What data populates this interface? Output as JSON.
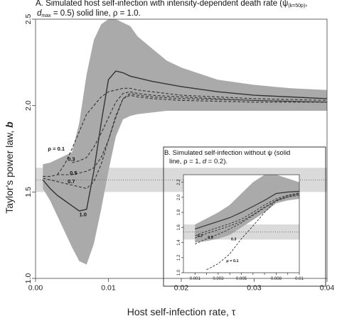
{
  "colors": {
    "band": "#aaaaaa",
    "ref_band": "#dadada",
    "line": "#333333",
    "axis": "#444444"
  },
  "chart_data": [
    {
      "type": "line",
      "title_parts": {
        "panel": "A.",
        "t1": "Simulated host self-infection with intensity-dependent death rate (",
        "psi": "ψ",
        "psi_sub": "(k=50p)",
        "t2": ",",
        "dmax": "d",
        "dmax_sub": "max",
        "t3": "= 0.5) solid line, ρ = 1.0."
      },
      "xlabel": "Host self-infection rate, τ",
      "ylabel_parts": {
        "text": "Taylor's power law, ",
        "var": "b"
      },
      "xlim": [
        0,
        0.04
      ],
      "ylim": [
        1.0,
        2.5
      ],
      "xticks": [
        0.0,
        0.01,
        0.02,
        0.03,
        0.04
      ],
      "xtick_labels": [
        "0.00",
        "0.01",
        "0.02",
        "0.03",
        "0.04"
      ],
      "yticks": [
        1.0,
        1.5,
        2.0,
        2.5
      ],
      "ytick_labels": [
        "1.0",
        "1.5",
        "2.0",
        "2.5"
      ],
      "reference_band": {
        "lower": 1.5,
        "upper": 1.64,
        "line": 1.57
      },
      "band": {
        "x": [
          0.001,
          0.002,
          0.003,
          0.004,
          0.005,
          0.006,
          0.007,
          0.008,
          0.009,
          0.01,
          0.011,
          0.012,
          0.013,
          0.014,
          0.016,
          0.018,
          0.02,
          0.025,
          0.03,
          0.035,
          0.04
        ],
        "upper": [
          1.66,
          1.67,
          1.69,
          1.71,
          1.73,
          1.9,
          2.18,
          2.38,
          2.47,
          2.5,
          2.5,
          2.48,
          2.46,
          2.4,
          2.33,
          2.26,
          2.22,
          2.15,
          2.12,
          2.1,
          2.09
        ],
        "lower": [
          1.52,
          1.45,
          1.36,
          1.27,
          1.18,
          1.1,
          1.08,
          1.2,
          1.4,
          1.62,
          1.82,
          1.92,
          1.94,
          1.95,
          1.96,
          1.97,
          1.97,
          1.97,
          1.97,
          1.97,
          1.97
        ]
      },
      "series": [
        {
          "label": "1.0",
          "style": "solid",
          "x": [
            0.001,
            0.002,
            0.003,
            0.004,
            0.005,
            0.006,
            0.007,
            0.008,
            0.009,
            0.01,
            0.011,
            0.012,
            0.013,
            0.014,
            0.016,
            0.02,
            0.025,
            0.03,
            0.035,
            0.04
          ],
          "y": [
            1.57,
            1.52,
            1.48,
            1.45,
            1.42,
            1.39,
            1.4,
            1.62,
            1.9,
            2.15,
            2.2,
            2.19,
            2.17,
            2.16,
            2.14,
            2.11,
            2.08,
            2.06,
            2.05,
            2.04
          ]
        },
        {
          "label": "ρ = 0.1",
          "style": "dashed",
          "x": [
            0.003,
            0.004,
            0.005,
            0.006,
            0.007,
            0.008,
            0.009,
            0.01,
            0.011,
            0.012,
            0.013,
            0.014,
            0.016,
            0.02,
            0.03,
            0.04
          ],
          "y": [
            1.6,
            1.66,
            1.75,
            1.85,
            1.95,
            2.0,
            2.05,
            2.08,
            2.09,
            2.1,
            2.1,
            2.09,
            2.08,
            2.06,
            2.04,
            2.03
          ]
        },
        {
          "label": "0.3",
          "style": "dashed",
          "x": [
            0.005,
            0.006,
            0.007,
            0.008,
            0.009,
            0.01,
            0.011,
            0.012,
            0.013,
            0.014,
            0.016,
            0.02,
            0.03,
            0.04
          ],
          "y": [
            1.67,
            1.68,
            1.7,
            1.76,
            1.84,
            1.93,
            2.02,
            2.07,
            2.08,
            2.07,
            2.06,
            2.05,
            2.03,
            2.02
          ]
        },
        {
          "label": "0.5",
          "style": "dashed",
          "x": [
            0.001,
            0.002,
            0.003,
            0.004,
            0.005,
            0.006,
            0.007,
            0.008,
            0.009,
            0.01,
            0.011,
            0.012,
            0.013,
            0.014,
            0.016,
            0.02,
            0.03,
            0.04
          ],
          "y": [
            1.59,
            1.59,
            1.6,
            1.6,
            1.6,
            1.61,
            1.62,
            1.64,
            1.7,
            1.8,
            1.93,
            2.04,
            2.07,
            2.06,
            2.05,
            2.04,
            2.03,
            2.02
          ]
        },
        {
          "label": "0.7",
          "style": "dashed",
          "x": [
            0.001,
            0.002,
            0.003,
            0.004,
            0.005,
            0.006,
            0.007,
            0.008,
            0.009,
            0.01,
            0.011,
            0.012,
            0.013,
            0.014,
            0.016,
            0.02,
            0.03,
            0.04
          ],
          "y": [
            1.58,
            1.57,
            1.56,
            1.55,
            1.54,
            1.53,
            1.52,
            1.56,
            1.66,
            1.8,
            1.94,
            2.04,
            2.06,
            2.05,
            2.04,
            2.03,
            2.02,
            2.02
          ]
        }
      ],
      "labels": [
        {
          "text": "ρ = 0.1",
          "x": 0.0017,
          "y": 1.74
        },
        {
          "text": "0.3",
          "x": 0.0044,
          "y": 1.68
        },
        {
          "text": "0.5",
          "x": 0.0047,
          "y": 1.6
        },
        {
          "text": "0.7",
          "x": 0.0044,
          "y": 1.55
        },
        {
          "text": "1.0",
          "x": 0.006,
          "y": 1.36
        }
      ]
    },
    {
      "type": "line",
      "title_parts": {
        "panel": "B.",
        "t1": "Simulated self-infection without ψ (solid",
        "t2a": "line, ρ = 1, ",
        "d": "d",
        "t2b": " = 0.2)."
      },
      "xlim": [
        0,
        0.01
      ],
      "ylim": [
        1.0,
        2.3
      ],
      "xticks": [
        0.001,
        0.002,
        0.003,
        0.004,
        0.005,
        0.006,
        0.007,
        0.008,
        0.009,
        0.01
      ],
      "xtick_labels": [
        "0.001",
        "",
        "0.003",
        "",
        "0.005",
        "",
        "",
        "0.008",
        "",
        "0.01"
      ],
      "yticks": [
        1.0,
        1.2,
        1.4,
        1.6,
        1.8,
        2.0,
        2.2
      ],
      "ytick_labels": [
        "1.0",
        "1.2",
        "1.4",
        "1.6",
        "1.8",
        "2.0",
        "2.2"
      ],
      "reference_band": {
        "lower": 1.44,
        "upper": 1.64,
        "line": 1.54
      },
      "band": {
        "x": [
          0.001,
          0.002,
          0.003,
          0.004,
          0.005,
          0.006,
          0.007,
          0.008,
          0.009,
          0.01
        ],
        "upper": [
          1.64,
          1.72,
          1.8,
          1.9,
          2.05,
          2.2,
          2.3,
          2.3,
          2.25,
          2.2
        ],
        "lower": [
          1.4,
          1.42,
          1.45,
          1.5,
          1.6,
          1.7,
          1.8,
          1.92,
          1.96,
          1.98
        ]
      },
      "series": [
        {
          "label": "1.0",
          "style": "solid",
          "x": [
            0.001,
            0.002,
            0.003,
            0.004,
            0.005,
            0.006,
            0.007,
            0.008,
            0.009,
            0.01
          ],
          "y": [
            1.58,
            1.63,
            1.68,
            1.73,
            1.8,
            1.88,
            1.96,
            2.05,
            2.07,
            2.08
          ]
        },
        {
          "label": "ρ = 0.1",
          "style": "dashed",
          "x": [
            0.002,
            0.003,
            0.004,
            0.005,
            0.006,
            0.007,
            0.008,
            0.009,
            0.01
          ],
          "y": [
            1.04,
            1.12,
            1.25,
            1.45,
            1.62,
            1.8,
            1.96,
            2.02,
            2.05
          ]
        },
        {
          "label": "0.3",
          "style": "dashed",
          "x": [
            0.001,
            0.002,
            0.003,
            0.004,
            0.005,
            0.006,
            0.007,
            0.008,
            0.009,
            0.01
          ],
          "y": [
            1.38,
            1.45,
            1.51,
            1.58,
            1.66,
            1.76,
            1.86,
            1.95,
            2.0,
            2.03
          ]
        },
        {
          "label": "0.5",
          "style": "dashed",
          "x": [
            0.001,
            0.002,
            0.003,
            0.004,
            0.005,
            0.006,
            0.007,
            0.008,
            0.009,
            0.01
          ],
          "y": [
            1.46,
            1.52,
            1.57,
            1.62,
            1.68,
            1.77,
            1.87,
            1.96,
            2.01,
            2.04
          ]
        },
        {
          "label": "0.7",
          "style": "dashed",
          "x": [
            0.001,
            0.002,
            0.003,
            0.004,
            0.005,
            0.006,
            0.007,
            0.008,
            0.009,
            0.01
          ],
          "y": [
            1.49,
            1.55,
            1.6,
            1.65,
            1.71,
            1.8,
            1.9,
            1.98,
            2.03,
            2.06
          ]
        }
      ],
      "labels": [
        {
          "text": "0.7",
          "x": 0.0012,
          "y": 1.47
        },
        {
          "text": "0.5",
          "x": 0.0021,
          "y": 1.45
        },
        {
          "text": "0.3",
          "x": 0.0041,
          "y": 1.43
        },
        {
          "text": "ρ = 0.1",
          "x": 0.0037,
          "y": 1.14
        }
      ]
    }
  ]
}
